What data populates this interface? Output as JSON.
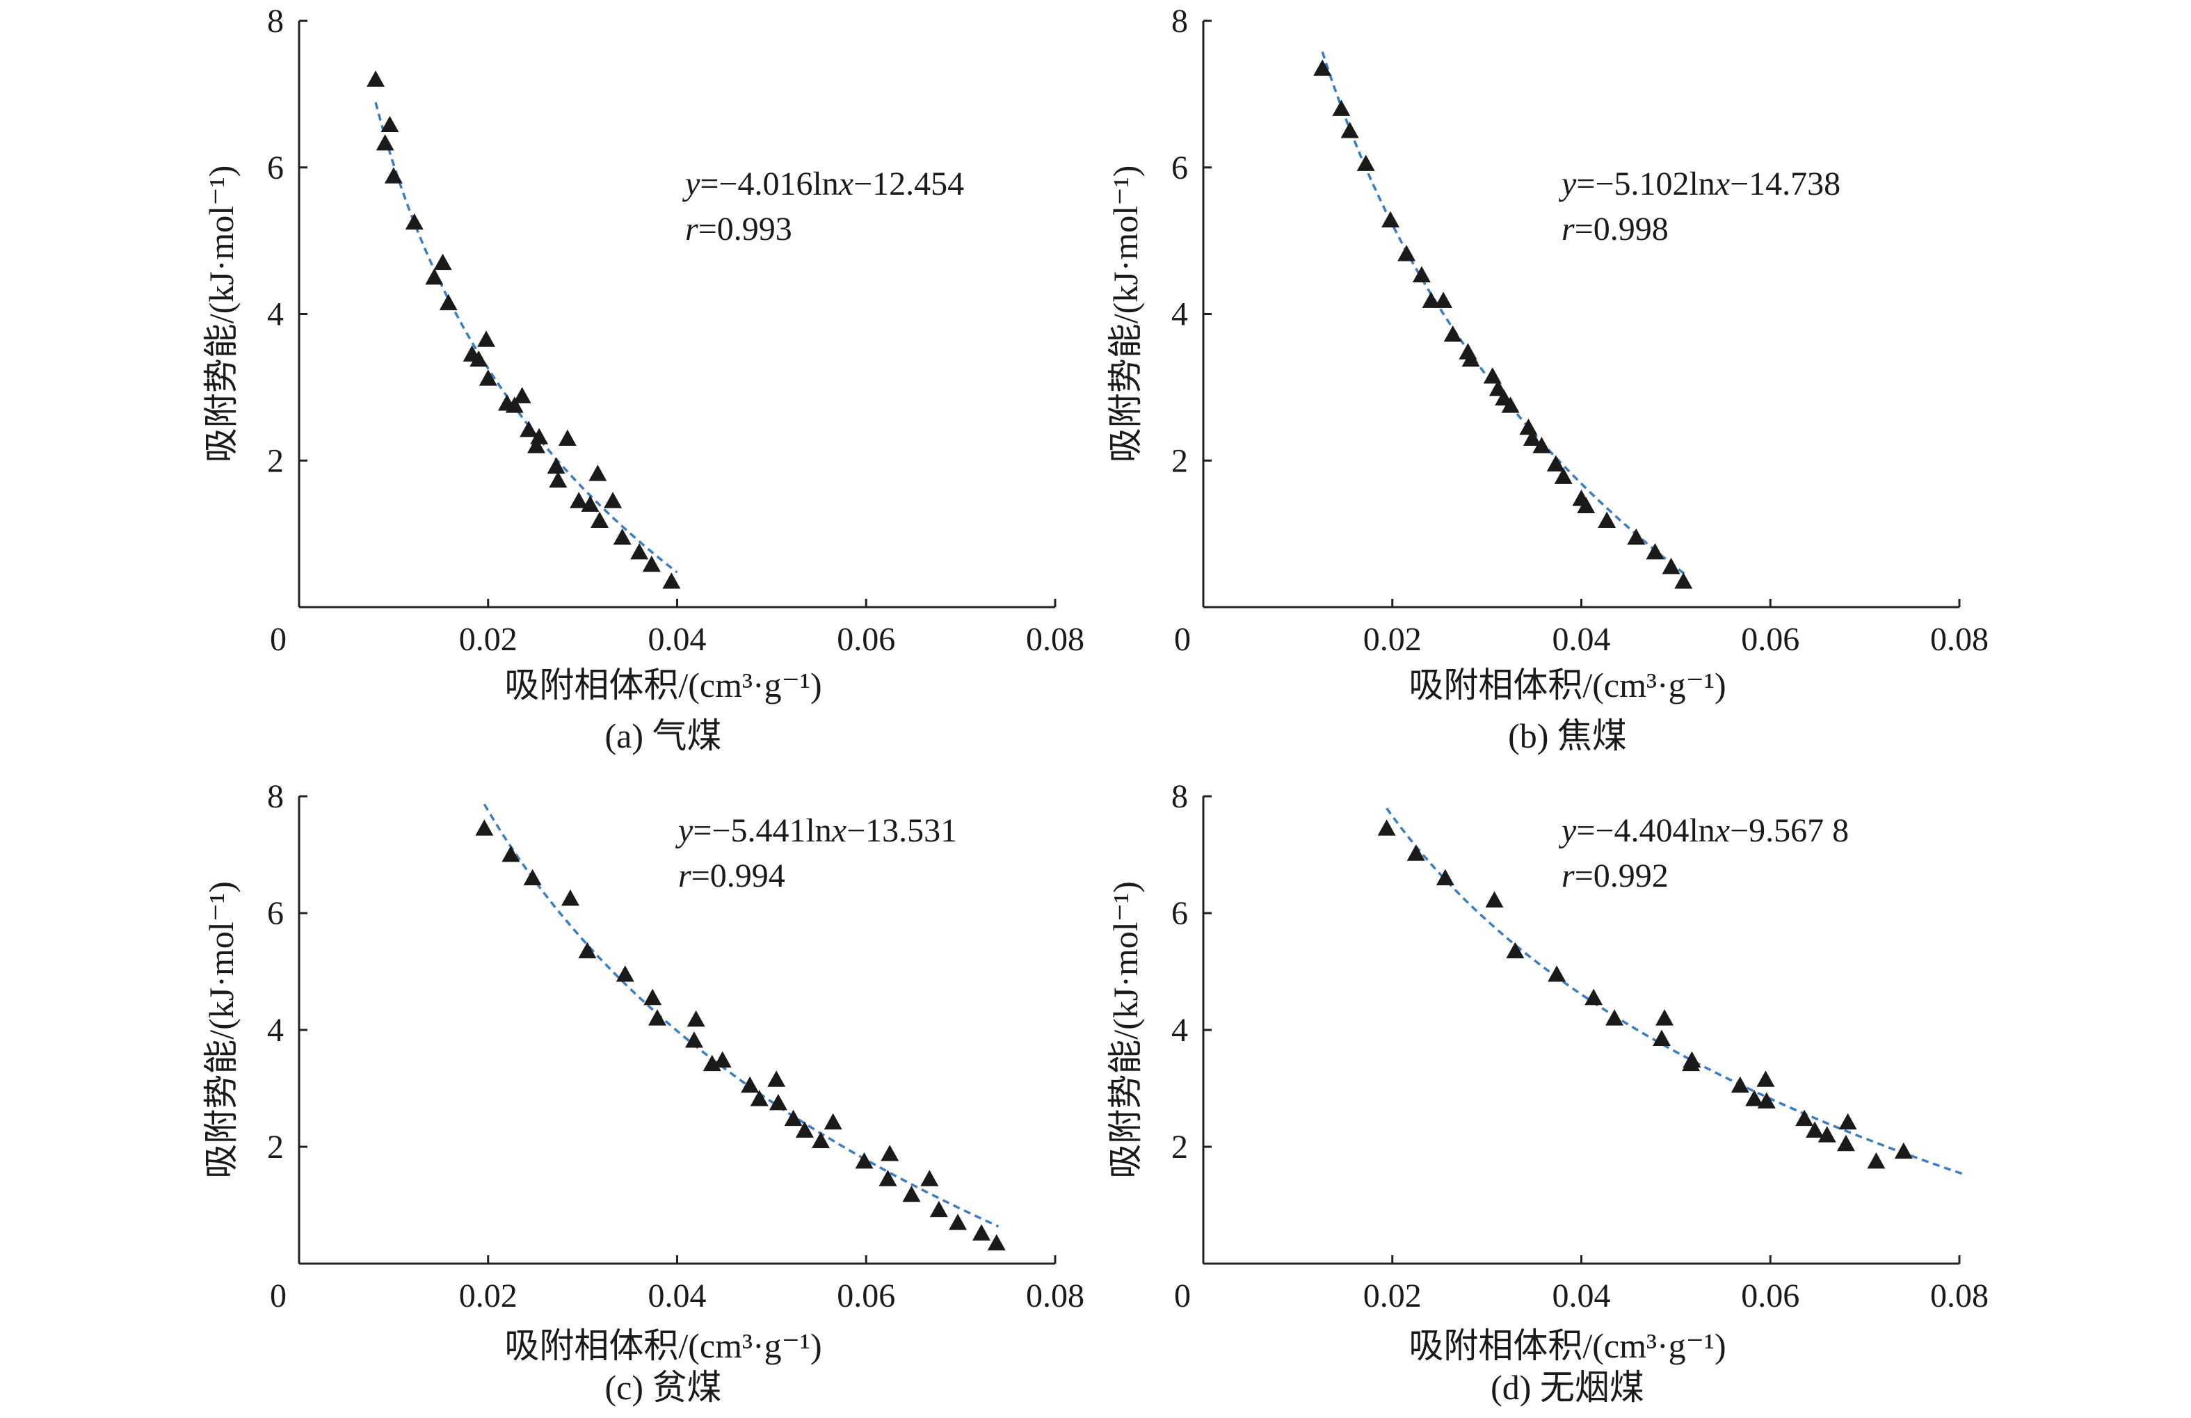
{
  "colors": {
    "axis": "#222222",
    "fit": "#3b7dc4",
    "marker": "#1a1a1a"
  },
  "chart_data": [
    {
      "id": "a",
      "type": "scatter",
      "caption": "(a) 气煤",
      "xlabel": "吸附相体积/(cm³·g⁻¹)",
      "ylabel": "吸附势能/(kJ·mol⁻¹)",
      "xlim": [
        0,
        0.08
      ],
      "ylim": [
        0,
        8
      ],
      "xticks": [
        0,
        0.02,
        0.04,
        0.06,
        0.08
      ],
      "xtick_labels": [
        "0",
        "0.02",
        "0.04",
        "0.06",
        "0.08"
      ],
      "yticks": [
        2,
        4,
        6,
        8
      ],
      "ytick_labels": [
        "2",
        "4",
        "6",
        "8"
      ],
      "equation_parts": {
        "y": "y",
        "mid": "=−4.016ln",
        "x": "x",
        "tail": "−12.454"
      },
      "r_parts": {
        "r": "r",
        "rest": "=0.993"
      },
      "fit": {
        "a": -4.016,
        "b": -12.454,
        "x_range": [
          0.0081,
          0.04
        ]
      },
      "points": [
        [
          0.0081,
          7.2
        ],
        [
          0.0091,
          6.33
        ],
        [
          0.0096,
          6.58
        ],
        [
          0.01,
          5.88
        ],
        [
          0.0122,
          5.25
        ],
        [
          0.0143,
          4.5
        ],
        [
          0.0152,
          4.7
        ],
        [
          0.0158,
          4.15
        ],
        [
          0.0183,
          3.45
        ],
        [
          0.019,
          3.38
        ],
        [
          0.0198,
          3.65
        ],
        [
          0.02,
          3.12
        ],
        [
          0.022,
          2.78
        ],
        [
          0.0228,
          2.75
        ],
        [
          0.0236,
          2.88
        ],
        [
          0.0243,
          2.42
        ],
        [
          0.0251,
          2.2
        ],
        [
          0.0254,
          2.32
        ],
        [
          0.0272,
          1.92
        ],
        [
          0.0274,
          1.73
        ],
        [
          0.0284,
          2.3
        ],
        [
          0.0296,
          1.45
        ],
        [
          0.0308,
          1.4
        ],
        [
          0.0316,
          1.82
        ],
        [
          0.0318,
          1.18
        ],
        [
          0.0332,
          1.45
        ],
        [
          0.0342,
          0.95
        ],
        [
          0.036,
          0.75
        ],
        [
          0.0373,
          0.58
        ],
        [
          0.0394,
          0.35
        ]
      ]
    },
    {
      "id": "b",
      "type": "scatter",
      "caption": "(b) 焦煤",
      "xlabel": "吸附相体积/(cm³·g⁻¹)",
      "ylabel": "吸附势能/(kJ·mol⁻¹)",
      "xlim": [
        0,
        0.08
      ],
      "ylim": [
        0,
        8
      ],
      "xticks": [
        0,
        0.02,
        0.04,
        0.06,
        0.08
      ],
      "xtick_labels": [
        "0",
        "0.02",
        "0.04",
        "0.06",
        "0.08"
      ],
      "yticks": [
        2,
        4,
        6,
        8
      ],
      "ytick_labels": [
        "2",
        "4",
        "6",
        "8"
      ],
      "equation_parts": {
        "y": "y",
        "mid": "=−5.102ln",
        "x": "x",
        "tail": "−14.738"
      },
      "r_parts": {
        "r": "r",
        "rest": "=0.998"
      },
      "fit": {
        "a": -5.102,
        "b": -14.738,
        "x_range": [
          0.0126,
          0.051
        ]
      },
      "points": [
        [
          0.0126,
          7.35
        ],
        [
          0.0146,
          6.8
        ],
        [
          0.0155,
          6.5
        ],
        [
          0.0172,
          6.05
        ],
        [
          0.0198,
          5.28
        ],
        [
          0.0215,
          4.82
        ],
        [
          0.0231,
          4.53
        ],
        [
          0.0241,
          4.18
        ],
        [
          0.0254,
          4.18
        ],
        [
          0.0264,
          3.72
        ],
        [
          0.028,
          3.48
        ],
        [
          0.0283,
          3.38
        ],
        [
          0.0306,
          3.15
        ],
        [
          0.0312,
          2.98
        ],
        [
          0.0318,
          2.85
        ],
        [
          0.0325,
          2.75
        ],
        [
          0.0344,
          2.45
        ],
        [
          0.0348,
          2.3
        ],
        [
          0.0358,
          2.2
        ],
        [
          0.0373,
          1.95
        ],
        [
          0.0381,
          1.78
        ],
        [
          0.04,
          1.48
        ],
        [
          0.0405,
          1.38
        ],
        [
          0.0427,
          1.18
        ],
        [
          0.0458,
          0.95
        ],
        [
          0.0478,
          0.75
        ],
        [
          0.0495,
          0.55
        ],
        [
          0.0508,
          0.35
        ]
      ]
    },
    {
      "id": "c",
      "type": "scatter",
      "caption": "(c) 贫煤",
      "xlabel": "吸附相体积/(cm³·g⁻¹)",
      "ylabel": "吸附势能/(kJ·mol⁻¹)",
      "xlim": [
        0,
        0.08
      ],
      "ylim": [
        0,
        8
      ],
      "xticks": [
        0,
        0.02,
        0.04,
        0.06,
        0.08
      ],
      "xtick_labels": [
        "0",
        "0.02",
        "0.04",
        "0.06",
        "0.08"
      ],
      "yticks": [
        2,
        4,
        6,
        8
      ],
      "ytick_labels": [
        "2",
        "4",
        "6",
        "8"
      ],
      "equation_parts": {
        "y": "y",
        "mid": "=−5.441ln",
        "x": "x",
        "tail": "−13.531"
      },
      "r_parts": {
        "r": "r",
        "rest": "=0.994"
      },
      "fit": {
        "a": -5.441,
        "b": -13.531,
        "x_range": [
          0.0196,
          0.074
        ]
      },
      "points": [
        [
          0.0196,
          7.45
        ],
        [
          0.0224,
          7.0
        ],
        [
          0.0247,
          6.6
        ],
        [
          0.0287,
          6.25
        ],
        [
          0.0305,
          5.35
        ],
        [
          0.0345,
          4.95
        ],
        [
          0.0374,
          4.55
        ],
        [
          0.0379,
          4.2
        ],
        [
          0.0418,
          3.82
        ],
        [
          0.042,
          4.18
        ],
        [
          0.0437,
          3.42
        ],
        [
          0.0448,
          3.48
        ],
        [
          0.0477,
          3.05
        ],
        [
          0.0487,
          2.82
        ],
        [
          0.0505,
          3.15
        ],
        [
          0.0507,
          2.75
        ],
        [
          0.0523,
          2.48
        ],
        [
          0.0535,
          2.28
        ],
        [
          0.0552,
          2.1
        ],
        [
          0.0565,
          2.42
        ],
        [
          0.0598,
          1.75
        ],
        [
          0.0623,
          1.45
        ],
        [
          0.0625,
          1.88
        ],
        [
          0.0648,
          1.18
        ],
        [
          0.0667,
          1.45
        ],
        [
          0.0677,
          0.92
        ],
        [
          0.0697,
          0.7
        ],
        [
          0.0722,
          0.52
        ],
        [
          0.0738,
          0.35
        ]
      ]
    },
    {
      "id": "d",
      "type": "scatter",
      "caption": "(d) 无烟煤",
      "xlabel": "吸附相体积/(cm³·g⁻¹)",
      "ylabel": "吸附势能/(kJ·mol⁻¹)",
      "xlim": [
        0,
        0.08
      ],
      "ylim": [
        0,
        8
      ],
      "xticks": [
        0,
        0.02,
        0.04,
        0.06,
        0.08
      ],
      "xtick_labels": [
        "0",
        "0.02",
        "0.04",
        "0.06",
        "0.08"
      ],
      "yticks": [
        2,
        4,
        6,
        8
      ],
      "ytick_labels": [
        "2",
        "4",
        "6",
        "8"
      ],
      "equation_parts": {
        "y": "y",
        "mid": "=−4.404ln",
        "x": "x",
        "tail": "−9.567 8"
      },
      "r_parts": {
        "r": "r",
        "rest": "=0.992"
      },
      "fit": {
        "a": -4.404,
        "b": -9.5678,
        "x_range": [
          0.0194,
          0.0805
        ]
      },
      "points": [
        [
          0.0194,
          7.45
        ],
        [
          0.0225,
          7.02
        ],
        [
          0.0256,
          6.6
        ],
        [
          0.0308,
          6.22
        ],
        [
          0.033,
          5.35
        ],
        [
          0.0374,
          4.95
        ],
        [
          0.0413,
          4.55
        ],
        [
          0.0435,
          4.2
        ],
        [
          0.0485,
          3.85
        ],
        [
          0.0488,
          4.2
        ],
        [
          0.0516,
          3.42
        ],
        [
          0.0517,
          3.48
        ],
        [
          0.0568,
          3.05
        ],
        [
          0.0583,
          2.82
        ],
        [
          0.0595,
          3.15
        ],
        [
          0.0596,
          2.78
        ],
        [
          0.0636,
          2.48
        ],
        [
          0.0647,
          2.28
        ],
        [
          0.066,
          2.2
        ],
        [
          0.068,
          2.05
        ],
        [
          0.0682,
          2.42
        ],
        [
          0.0712,
          1.75
        ],
        [
          0.0741,
          1.92
        ]
      ]
    }
  ]
}
